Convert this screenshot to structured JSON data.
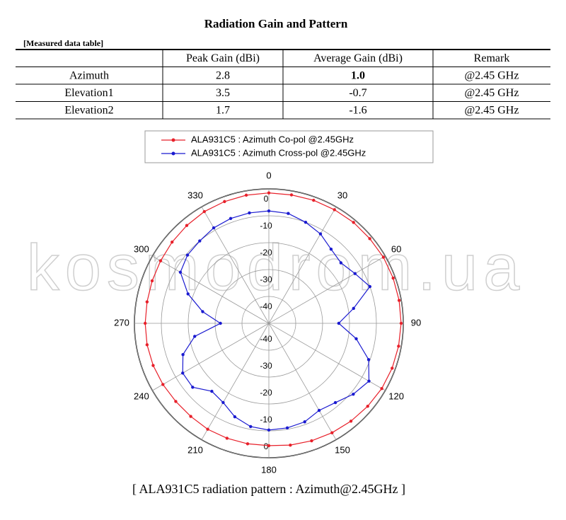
{
  "header": {
    "title": "Radiation Gain and Pattern",
    "subtitle": "[Measured data table]"
  },
  "table": {
    "columns": [
      "Peak Gain (dBi)",
      "Average Gain (dBi)",
      "Remark"
    ],
    "rows": [
      [
        "Azimuth",
        "2.8",
        "1.0",
        "@2.45 GHz"
      ],
      [
        "Elevation1",
        "3.5",
        "-0.7",
        "@2.45 GHz"
      ],
      [
        "Elevation2",
        "1.7",
        "-1.6",
        "@2.45 GHz"
      ]
    ]
  },
  "watermark": "kosmodrom.ua",
  "chart_data": {
    "type": "polar",
    "theta": [
      0,
      10,
      20,
      30,
      40,
      50,
      60,
      70,
      80,
      90,
      100,
      110,
      120,
      130,
      140,
      150,
      160,
      170,
      180,
      190,
      200,
      210,
      220,
      230,
      240,
      250,
      260,
      270,
      280,
      290,
      300,
      310,
      320,
      330,
      340,
      350
    ],
    "series": [
      {
        "name": "ALA931C5 : Azimuth Co-pol @2.45GHz",
        "color": "#e8202a",
        "values": [
          -1.5,
          -1.5,
          -1.3,
          -1.2,
          -1,
          -1,
          -0.8,
          -0.8,
          -0.8,
          -0.8,
          -1,
          -1.2,
          -1.5,
          -2,
          -2.5,
          -3,
          -3.5,
          -4,
          -4.5,
          -4.5,
          -4.5,
          -4.5,
          -4.8,
          -4.8,
          -4.5,
          -4.2,
          -4,
          -4,
          -4,
          -3.8,
          -3.5,
          -3,
          -2.5,
          -2,
          -1.8,
          -1.6
        ]
      },
      {
        "name": "ALA931C5 : Azimuth Cross-pol @2.45GHz",
        "color": "#1a1ad0",
        "values": [
          -8.2,
          -8.5,
          -10,
          -11.6,
          -14,
          -15,
          -13,
          -10,
          -18,
          -24,
          -17,
          -10.5,
          -7,
          -9,
          -11.5,
          -12.6,
          -11,
          -10.5,
          -10.3,
          -11,
          -13,
          -16,
          -17,
          -13,
          -13,
          -16,
          -22,
          -32,
          -25,
          -18,
          -12,
          -10.5,
          -10,
          -9,
          -8.5,
          -8.3
        ]
      }
    ],
    "rlim": [
      -50,
      0
    ],
    "rticks": [
      0,
      -10,
      -20,
      -30,
      -40
    ],
    "thetaticks": [
      0,
      30,
      60,
      90,
      120,
      150,
      180,
      210,
      240,
      270,
      300,
      330
    ],
    "grid": true,
    "caption": "[ ALA931C5 radiation pattern : Azimuth@2.45GHz ]"
  }
}
